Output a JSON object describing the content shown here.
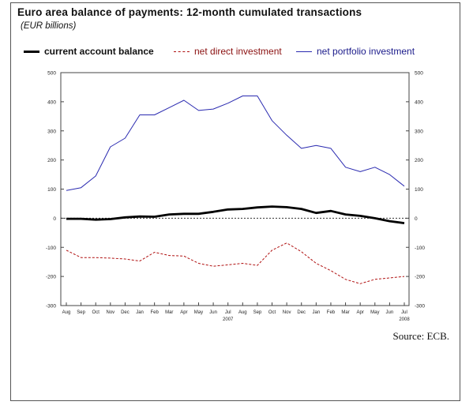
{
  "title": "Euro area balance of payments: 12-month cumulated transactions",
  "subtitle": "(EUR billions)",
  "source": "Source: ECB.",
  "colors": {
    "current_account": "#000000",
    "direct_investment": "#b01010",
    "portfolio_investment": "#2a2ab0",
    "zero_line": "#333333"
  },
  "chart_data": {
    "type": "line",
    "categories": [
      "Aug",
      "Sep",
      "Oct",
      "Nov",
      "Dec",
      "Jan",
      "Feb",
      "Mar",
      "Apr",
      "May",
      "Jun",
      "Jul",
      "Aug",
      "Sep",
      "Oct",
      "Nov",
      "Dec",
      "Jan",
      "Feb",
      "Mar",
      "Apr",
      "May",
      "Jun",
      "Jul"
    ],
    "year_labels": [
      {
        "index": 11,
        "label": "2007"
      },
      {
        "index": 23,
        "label": "2008"
      }
    ],
    "ylim": [
      -300,
      500
    ],
    "yticks": [
      -300,
      -200,
      -100,
      0,
      100,
      200,
      300,
      400,
      500
    ],
    "series": [
      {
        "name": "current account balance",
        "style": "solid-thick",
        "values": [
          -2,
          -2,
          -5,
          -3,
          3,
          6,
          5,
          13,
          15,
          15,
          22,
          30,
          32,
          37,
          40,
          38,
          32,
          18,
          25,
          13,
          8,
          0,
          -10,
          -17
        ]
      },
      {
        "name": "net direct investment",
        "style": "dashed",
        "values": [
          -110,
          -135,
          -135,
          -137,
          -140,
          -147,
          -117,
          -128,
          -130,
          -155,
          -165,
          -160,
          -155,
          -162,
          -110,
          -85,
          -115,
          -155,
          -180,
          -210,
          -225,
          -210,
          -205,
          -200
        ]
      },
      {
        "name": "net portfolio investment",
        "style": "solid-thin",
        "values": [
          95,
          105,
          145,
          245,
          275,
          355,
          355,
          380,
          405,
          370,
          375,
          395,
          420,
          420,
          335,
          285,
          240,
          250,
          240,
          175,
          160,
          175,
          150,
          110
        ]
      }
    ],
    "reference_line": {
      "value": 0,
      "style": "dotted"
    }
  }
}
